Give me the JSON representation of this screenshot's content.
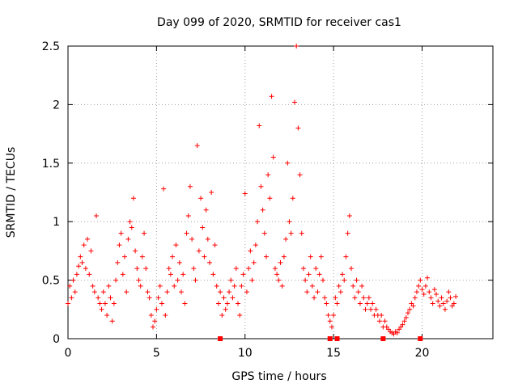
{
  "chart_data": {
    "type": "scatter",
    "title": "Day 099 of 2020, SRMTID for receiver cas1",
    "xlabel": "GPS time / hours",
    "ylabel": "SRMTID / TECUs",
    "xlim": [
      0,
      24
    ],
    "ylim": [
      0,
      2.5
    ],
    "x_ticks": [
      0,
      5,
      10,
      15,
      20
    ],
    "x_tick_labels": [
      "0",
      "5",
      "10",
      "15",
      "20"
    ],
    "y_ticks": [
      0,
      0.5,
      1,
      1.5,
      2,
      2.5
    ],
    "y_tick_labels": [
      "0",
      "0.5",
      "1",
      "1.5",
      "2",
      "2.5"
    ],
    "grid": true,
    "marker": "+",
    "series": [
      {
        "name": "SRMTID",
        "color": "#ff0000",
        "points": [
          [
            0.0,
            0.3
          ],
          [
            0.1,
            0.45
          ],
          [
            0.2,
            0.35
          ],
          [
            0.3,
            0.5
          ],
          [
            0.4,
            0.4
          ],
          [
            0.5,
            0.55
          ],
          [
            0.6,
            0.62
          ],
          [
            0.7,
            0.7
          ],
          [
            0.8,
            0.65
          ],
          [
            0.9,
            0.8
          ],
          [
            1.0,
            0.6
          ],
          [
            1.1,
            0.85
          ],
          [
            1.2,
            0.55
          ],
          [
            1.3,
            0.75
          ],
          [
            1.4,
            0.45
          ],
          [
            1.5,
            0.4
          ],
          [
            1.6,
            1.05
          ],
          [
            1.7,
            0.35
          ],
          [
            1.8,
            0.3
          ],
          [
            1.9,
            0.25
          ],
          [
            2.0,
            0.4
          ],
          [
            2.1,
            0.3
          ],
          [
            2.2,
            0.2
          ],
          [
            2.3,
            0.45
          ],
          [
            2.4,
            0.35
          ],
          [
            2.5,
            0.15
          ],
          [
            2.6,
            0.3
          ],
          [
            2.7,
            0.5
          ],
          [
            2.8,
            0.65
          ],
          [
            2.9,
            0.8
          ],
          [
            3.0,
            0.9
          ],
          [
            3.1,
            0.55
          ],
          [
            3.2,
            0.7
          ],
          [
            3.3,
            0.4
          ],
          [
            3.4,
            0.85
          ],
          [
            3.5,
            1.0
          ],
          [
            3.6,
            0.95
          ],
          [
            3.7,
            1.2
          ],
          [
            3.8,
            0.75
          ],
          [
            3.9,
            0.6
          ],
          [
            4.0,
            0.5
          ],
          [
            4.1,
            0.45
          ],
          [
            4.2,
            0.7
          ],
          [
            4.3,
            0.9
          ],
          [
            4.4,
            0.6
          ],
          [
            4.5,
            0.4
          ],
          [
            4.6,
            0.35
          ],
          [
            4.7,
            0.2
          ],
          [
            4.8,
            0.1
          ],
          [
            4.9,
            0.15
          ],
          [
            5.0,
            0.25
          ],
          [
            5.1,
            0.35
          ],
          [
            5.2,
            0.45
          ],
          [
            5.3,
            0.3
          ],
          [
            5.4,
            1.28
          ],
          [
            5.5,
            0.2
          ],
          [
            5.6,
            0.4
          ],
          [
            5.7,
            0.6
          ],
          [
            5.8,
            0.55
          ],
          [
            5.9,
            0.7
          ],
          [
            6.0,
            0.45
          ],
          [
            6.1,
            0.8
          ],
          [
            6.2,
            0.5
          ],
          [
            6.3,
            0.65
          ],
          [
            6.4,
            0.4
          ],
          [
            6.5,
            0.55
          ],
          [
            6.6,
            0.3
          ],
          [
            6.7,
            0.9
          ],
          [
            6.8,
            1.05
          ],
          [
            6.9,
            1.3
          ],
          [
            7.0,
            0.85
          ],
          [
            7.1,
            0.6
          ],
          [
            7.2,
            0.5
          ],
          [
            7.3,
            1.65
          ],
          [
            7.4,
            0.75
          ],
          [
            7.5,
            1.2
          ],
          [
            7.6,
            0.95
          ],
          [
            7.7,
            0.7
          ],
          [
            7.8,
            1.1
          ],
          [
            7.9,
            0.85
          ],
          [
            8.0,
            0.65
          ],
          [
            8.1,
            1.25
          ],
          [
            8.2,
            0.55
          ],
          [
            8.3,
            0.8
          ],
          [
            8.4,
            0.45
          ],
          [
            8.5,
            0.3
          ],
          [
            8.6,
            0.4
          ],
          [
            8.7,
            0.2
          ],
          [
            8.8,
            0.35
          ],
          [
            8.9,
            0.25
          ],
          [
            9.0,
            0.3
          ],
          [
            9.1,
            0.4
          ],
          [
            9.2,
            0.5
          ],
          [
            9.3,
            0.35
          ],
          [
            9.4,
            0.45
          ],
          [
            9.5,
            0.6
          ],
          [
            9.6,
            0.3
          ],
          [
            9.7,
            0.2
          ],
          [
            9.8,
            0.45
          ],
          [
            9.9,
            0.55
          ],
          [
            10.0,
            1.24
          ],
          [
            10.1,
            0.4
          ],
          [
            10.2,
            0.6
          ],
          [
            10.3,
            0.75
          ],
          [
            10.4,
            0.5
          ],
          [
            10.5,
            0.65
          ],
          [
            10.6,
            0.8
          ],
          [
            10.7,
            1.0
          ],
          [
            10.8,
            1.82
          ],
          [
            10.9,
            1.3
          ],
          [
            11.0,
            1.1
          ],
          [
            11.1,
            0.9
          ],
          [
            11.2,
            0.7
          ],
          [
            11.3,
            1.4
          ],
          [
            11.4,
            1.2
          ],
          [
            11.5,
            2.07
          ],
          [
            11.6,
            1.55
          ],
          [
            11.7,
            0.6
          ],
          [
            11.8,
            0.55
          ],
          [
            11.9,
            0.5
          ],
          [
            12.0,
            0.65
          ],
          [
            12.1,
            0.45
          ],
          [
            12.2,
            0.7
          ],
          [
            12.3,
            0.85
          ],
          [
            12.4,
            1.5
          ],
          [
            12.5,
            1.0
          ],
          [
            12.6,
            0.9
          ],
          [
            12.7,
            1.2
          ],
          [
            12.8,
            2.02
          ],
          [
            12.9,
            2.5
          ],
          [
            13.0,
            1.8
          ],
          [
            13.1,
            1.4
          ],
          [
            13.2,
            0.9
          ],
          [
            13.3,
            0.6
          ],
          [
            13.4,
            0.5
          ],
          [
            13.5,
            0.4
          ],
          [
            13.6,
            0.55
          ],
          [
            13.7,
            0.7
          ],
          [
            13.8,
            0.45
          ],
          [
            13.9,
            0.35
          ],
          [
            14.0,
            0.6
          ],
          [
            14.1,
            0.4
          ],
          [
            14.2,
            0.55
          ],
          [
            14.3,
            0.7
          ],
          [
            14.4,
            0.5
          ],
          [
            14.5,
            0.35
          ],
          [
            14.6,
            0.3
          ],
          [
            14.7,
            0.2
          ],
          [
            14.8,
            0.15
          ],
          [
            14.9,
            0.1
          ],
          [
            15.0,
            0.2
          ],
          [
            15.1,
            0.35
          ],
          [
            15.2,
            0.3
          ],
          [
            15.3,
            0.45
          ],
          [
            15.4,
            0.4
          ],
          [
            15.5,
            0.55
          ],
          [
            15.6,
            0.5
          ],
          [
            15.7,
            0.7
          ],
          [
            15.8,
            0.9
          ],
          [
            15.9,
            1.05
          ],
          [
            16.0,
            0.6
          ],
          [
            16.1,
            0.45
          ],
          [
            16.2,
            0.35
          ],
          [
            16.3,
            0.5
          ],
          [
            16.4,
            0.4
          ],
          [
            16.5,
            0.3
          ],
          [
            16.6,
            0.45
          ],
          [
            16.7,
            0.35
          ],
          [
            16.8,
            0.25
          ],
          [
            16.9,
            0.3
          ],
          [
            17.0,
            0.35
          ],
          [
            17.1,
            0.25
          ],
          [
            17.2,
            0.3
          ],
          [
            17.3,
            0.2
          ],
          [
            17.4,
            0.25
          ],
          [
            17.5,
            0.2
          ],
          [
            17.6,
            0.15
          ],
          [
            17.7,
            0.2
          ],
          [
            17.8,
            0.1
          ],
          [
            17.9,
            0.15
          ],
          [
            18.0,
            0.1
          ],
          [
            18.1,
            0.08
          ],
          [
            18.2,
            0.06
          ],
          [
            18.3,
            0.05
          ],
          [
            18.4,
            0.04
          ],
          [
            18.5,
            0.06
          ],
          [
            18.6,
            0.05
          ],
          [
            18.7,
            0.08
          ],
          [
            18.8,
            0.1
          ],
          [
            18.9,
            0.12
          ],
          [
            19.0,
            0.15
          ],
          [
            19.1,
            0.18
          ],
          [
            19.2,
            0.22
          ],
          [
            19.3,
            0.25
          ],
          [
            19.4,
            0.3
          ],
          [
            19.5,
            0.28
          ],
          [
            19.6,
            0.35
          ],
          [
            19.7,
            0.4
          ],
          [
            19.8,
            0.45
          ],
          [
            19.9,
            0.5
          ],
          [
            20.0,
            0.42
          ],
          [
            20.1,
            0.38
          ],
          [
            20.2,
            0.45
          ],
          [
            20.3,
            0.52
          ],
          [
            20.4,
            0.4
          ],
          [
            20.5,
            0.35
          ],
          [
            20.6,
            0.3
          ],
          [
            20.7,
            0.42
          ],
          [
            20.8,
            0.38
          ],
          [
            20.9,
            0.32
          ],
          [
            21.0,
            0.28
          ],
          [
            21.1,
            0.35
          ],
          [
            21.2,
            0.3
          ],
          [
            21.3,
            0.25
          ],
          [
            21.4,
            0.32
          ],
          [
            21.5,
            0.4
          ],
          [
            21.6,
            0.35
          ],
          [
            21.7,
            0.28
          ],
          [
            21.8,
            0.3
          ],
          [
            21.9,
            0.36
          ]
        ]
      }
    ],
    "markers_at_zero": [
      8.6,
      14.8,
      15.2,
      17.8,
      19.9
    ]
  }
}
